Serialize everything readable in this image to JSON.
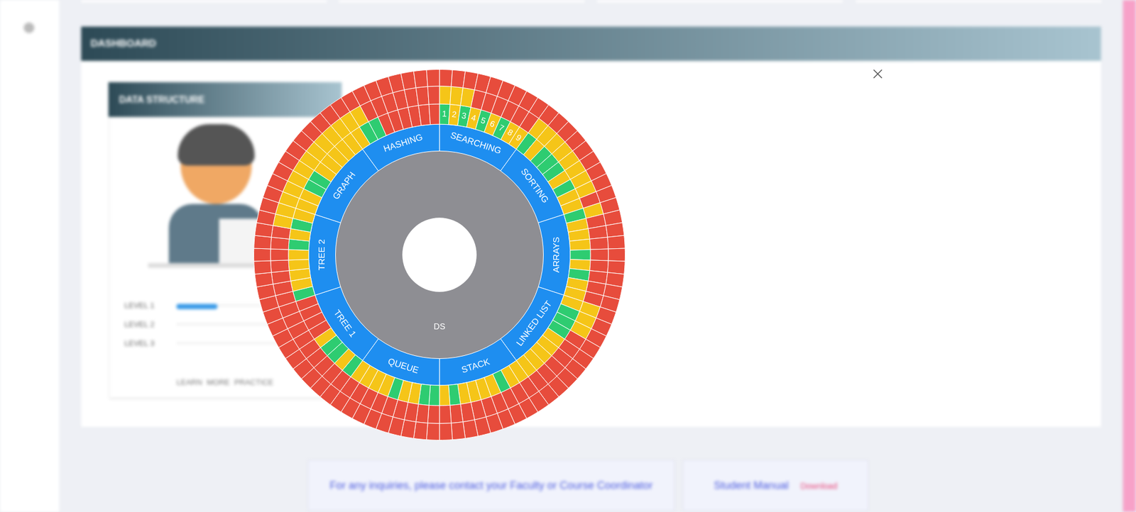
{
  "page": {
    "header": "DASHBOARD",
    "card_title": "DATA STRUCTURE",
    "levels": [
      "LEVEL 1",
      "LEVEL 2",
      "LEVEL 3"
    ],
    "card_links": [
      "LEARN MORE",
      "PRACTICE"
    ],
    "notice": "For any inquiries, please contact your Faculty or Course Coordinator",
    "manual": "Student Manual",
    "download": "Download"
  },
  "chart_data": {
    "type": "sunburst",
    "center": {
      "label": "DS",
      "color": "#8e8e93"
    },
    "topics": [
      {
        "name": "SEARCHING",
        "color": "#1e8ef0",
        "level_labels": [
          "1",
          "2",
          "3",
          "4",
          "5",
          "6",
          "7",
          "8",
          "9"
        ],
        "rings": [
          [
            "#2ecc71",
            "#f5c518",
            "#2ecc71",
            "#f5c518",
            "#2ecc71",
            "#f5c518",
            "#2ecc71",
            "#f5c518",
            "#f5c518"
          ],
          [
            "#f5c518",
            "#f5c518",
            "#f5c518",
            "#e74c3c",
            "#e74c3c",
            "#e74c3c",
            "#e74c3c",
            "#e74c3c",
            "#e74c3c"
          ],
          [
            "#e74c3c",
            "#e74c3c",
            "#e74c3c",
            "#e74c3c",
            "#e74c3c",
            "#e74c3c",
            "#e74c3c",
            "#e74c3c",
            "#e74c3c"
          ]
        ]
      },
      {
        "name": "SORTING",
        "color": "#1e8ef0",
        "rings": [
          [
            "#2ecc71",
            "#f5c518",
            "#2ecc71",
            "#2ecc71",
            "#2ecc71",
            "#f5c518",
            "#2ecc71",
            "#f5c518",
            "#f5c518"
          ],
          [
            "#f5c518",
            "#f5c518",
            "#f5c518",
            "#f5c518",
            "#f5c518",
            "#f5c518",
            "#f5c518",
            "#f5c518",
            "#e74c3c"
          ],
          [
            "#e74c3c",
            "#e74c3c",
            "#e74c3c",
            "#e74c3c",
            "#e74c3c",
            "#e74c3c",
            "#e74c3c",
            "#e74c3c",
            "#e74c3c"
          ]
        ]
      },
      {
        "name": "ARRAYS",
        "color": "#1e8ef0",
        "rings": [
          [
            "#2ecc71",
            "#f5c518",
            "#f5c518",
            "#f5c518",
            "#2ecc71",
            "#f5c518",
            "#2ecc71",
            "#f5c518",
            "#f5c518"
          ],
          [
            "#f5c518",
            "#e74c3c",
            "#e74c3c",
            "#e74c3c",
            "#e74c3c",
            "#e74c3c",
            "#e74c3c",
            "#e74c3c",
            "#e74c3c"
          ],
          [
            "#e74c3c",
            "#e74c3c",
            "#e74c3c",
            "#e74c3c",
            "#e74c3c",
            "#e74c3c",
            "#e74c3c",
            "#e74c3c",
            "#e74c3c"
          ]
        ]
      },
      {
        "name": "LINKED LIST",
        "color": "#1e8ef0",
        "rings": [
          [
            "#f5c518",
            "#2ecc71",
            "#2ecc71",
            "#2ecc71",
            "#f5c518",
            "#f5c518",
            "#f5c518",
            "#f5c518",
            "#f5c518"
          ],
          [
            "#f5c518",
            "#f5c518",
            "#f5c518",
            "#e74c3c",
            "#e74c3c",
            "#e74c3c",
            "#e74c3c",
            "#e74c3c",
            "#e74c3c"
          ],
          [
            "#e74c3c",
            "#e74c3c",
            "#e74c3c",
            "#e74c3c",
            "#e74c3c",
            "#e74c3c",
            "#e74c3c",
            "#e74c3c",
            "#e74c3c"
          ]
        ]
      },
      {
        "name": "STACK",
        "color": "#1e8ef0",
        "rings": [
          [
            "#f5c518",
            "#f5c518",
            "#2ecc71",
            "#f5c518",
            "#f5c518",
            "#f5c518",
            "#f5c518",
            "#2ecc71",
            "#f5c518"
          ],
          [
            "#e74c3c",
            "#e74c3c",
            "#e74c3c",
            "#e74c3c",
            "#e74c3c",
            "#e74c3c",
            "#e74c3c",
            "#e74c3c",
            "#e74c3c"
          ],
          [
            "#e74c3c",
            "#e74c3c",
            "#e74c3c",
            "#e74c3c",
            "#e74c3c",
            "#e74c3c",
            "#e74c3c",
            "#e74c3c",
            "#e74c3c"
          ]
        ]
      },
      {
        "name": "QUEUE",
        "color": "#1e8ef0",
        "rings": [
          [
            "#2ecc71",
            "#2ecc71",
            "#f5c518",
            "#f5c518",
            "#2ecc71",
            "#f5c518",
            "#f5c518",
            "#f5c518",
            "#f5c518"
          ],
          [
            "#e74c3c",
            "#e74c3c",
            "#e74c3c",
            "#e74c3c",
            "#e74c3c",
            "#e74c3c",
            "#e74c3c",
            "#e74c3c",
            "#e74c3c"
          ],
          [
            "#e74c3c",
            "#e74c3c",
            "#e74c3c",
            "#e74c3c",
            "#e74c3c",
            "#e74c3c",
            "#e74c3c",
            "#e74c3c",
            "#e74c3c"
          ]
        ]
      },
      {
        "name": "TREE 1",
        "color": "#1e8ef0",
        "rings": [
          [
            "#2ecc71",
            "#f5c518",
            "#2ecc71",
            "#2ecc71",
            "#f5c518",
            "#e74c3c",
            "#e74c3c",
            "#e74c3c",
            "#e74c3c"
          ],
          [
            "#e74c3c",
            "#e74c3c",
            "#e74c3c",
            "#e74c3c",
            "#e74c3c",
            "#e74c3c",
            "#e74c3c",
            "#e74c3c",
            "#e74c3c"
          ],
          [
            "#e74c3c",
            "#e74c3c",
            "#e74c3c",
            "#e74c3c",
            "#e74c3c",
            "#e74c3c",
            "#e74c3c",
            "#e74c3c",
            "#e74c3c"
          ]
        ]
      },
      {
        "name": "TREE 2",
        "color": "#1e8ef0",
        "rings": [
          [
            "#2ecc71",
            "#f5c518",
            "#f5c518",
            "#f5c518",
            "#f5c518",
            "#2ecc71",
            "#f5c518",
            "#2ecc71",
            "#f5c518"
          ],
          [
            "#e74c3c",
            "#e74c3c",
            "#e74c3c",
            "#e74c3c",
            "#e74c3c",
            "#e74c3c",
            "#e74c3c",
            "#f5c518",
            "#f5c518"
          ],
          [
            "#e74c3c",
            "#e74c3c",
            "#e74c3c",
            "#e74c3c",
            "#e74c3c",
            "#e74c3c",
            "#e74c3c",
            "#e74c3c",
            "#e74c3c"
          ]
        ]
      },
      {
        "name": "GRAPH",
        "color": "#1e8ef0",
        "rings": [
          [
            "#f5c518",
            "#f5c518",
            "#2ecc71",
            "#2ecc71",
            "#f5c518",
            "#f5c518",
            "#f5c518",
            "#f5c518",
            "#f5c518"
          ],
          [
            "#f5c518",
            "#f5c518",
            "#f5c518",
            "#f5c518",
            "#f5c518",
            "#f5c518",
            "#f5c518",
            "#f5c518",
            "#f5c518"
          ],
          [
            "#e74c3c",
            "#e74c3c",
            "#e74c3c",
            "#e74c3c",
            "#e74c3c",
            "#e74c3c",
            "#e74c3c",
            "#e74c3c",
            "#e74c3c"
          ]
        ]
      },
      {
        "name": "HASHING",
        "color": "#1e8ef0",
        "rings": [
          [
            "#f5c518",
            "#2ecc71",
            "#2ecc71",
            "#e74c3c",
            "#e74c3c",
            "#e74c3c",
            "#e74c3c",
            "#e74c3c",
            "#e74c3c"
          ],
          [
            "#f5c518",
            "#f5c518",
            "#e74c3c",
            "#e74c3c",
            "#e74c3c",
            "#e74c3c",
            "#e74c3c",
            "#e74c3c",
            "#e74c3c"
          ],
          [
            "#e74c3c",
            "#e74c3c",
            "#e74c3c",
            "#e74c3c",
            "#e74c3c",
            "#e74c3c",
            "#e74c3c",
            "#e74c3c",
            "#e74c3c"
          ]
        ]
      }
    ]
  }
}
